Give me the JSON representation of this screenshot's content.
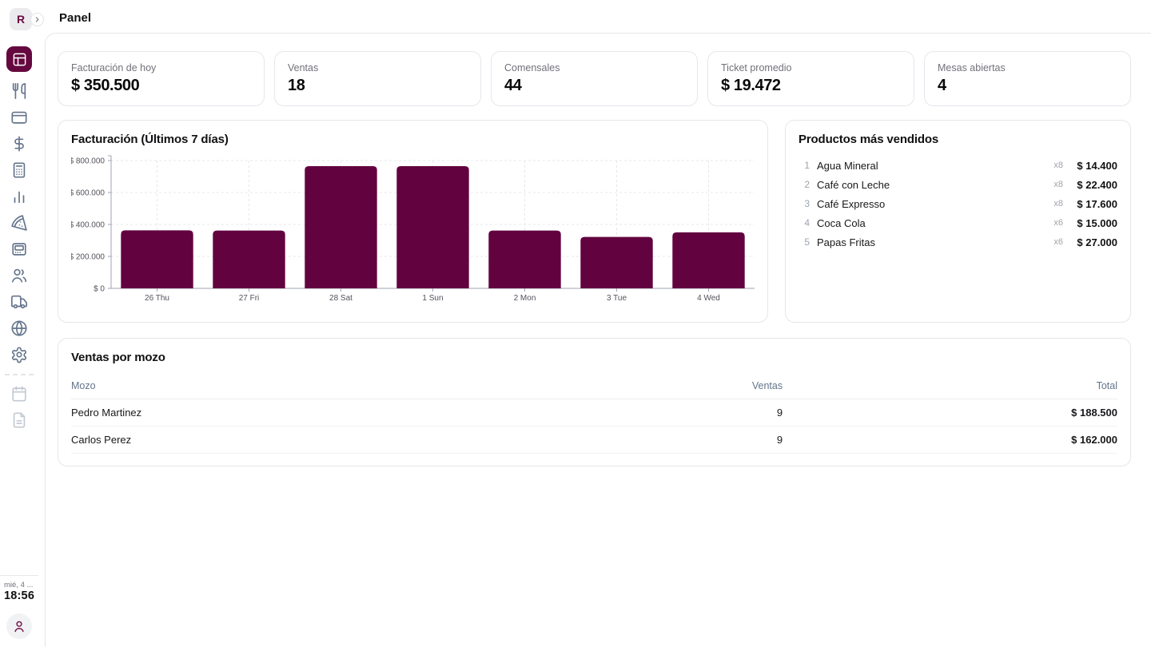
{
  "app": {
    "logo_letter": "R",
    "page_title": "Panel",
    "date_short": "mié, 4 ...",
    "time": "18:56"
  },
  "colors": {
    "accent": "#620340",
    "sidebar_icon": "#64748b",
    "border": "#e5e7eb",
    "grid": "#e5e7eb",
    "axis_text": "#52525b"
  },
  "sidebar": {
    "items": [
      {
        "id": "dashboard",
        "active": true
      },
      {
        "id": "utensils"
      },
      {
        "id": "wallet"
      },
      {
        "id": "dollar"
      },
      {
        "id": "calculator"
      },
      {
        "id": "bar-chart"
      },
      {
        "id": "pizza"
      },
      {
        "id": "terminal"
      },
      {
        "id": "users"
      },
      {
        "id": "truck"
      },
      {
        "id": "globe"
      },
      {
        "id": "settings"
      }
    ],
    "secondary_items": [
      {
        "id": "calendar",
        "disabled": true
      },
      {
        "id": "file",
        "disabled": true
      }
    ]
  },
  "stats": [
    {
      "label": "Facturación de hoy",
      "value": "$ 350.500"
    },
    {
      "label": "Ventas",
      "value": "18"
    },
    {
      "label": "Comensales",
      "value": "44"
    },
    {
      "label": "Ticket promedio",
      "value": "$ 19.472"
    },
    {
      "label": "Mesas abiertas",
      "value": "4"
    }
  ],
  "chart_data": {
    "type": "bar",
    "title": "Facturación (Últimos 7 días)",
    "categories": [
      "26 Thu",
      "27 Fri",
      "28 Sat",
      "1 Sun",
      "2 Mon",
      "3 Tue",
      "4 Wed"
    ],
    "values": [
      363000,
      362000,
      765000,
      765000,
      362000,
      322000,
      350500
    ],
    "ylim": [
      0,
      800000
    ],
    "y_ticks": [
      {
        "value": 0,
        "label": "$ 0"
      },
      {
        "value": 200000,
        "label": "$ 200.000"
      },
      {
        "value": 400000,
        "label": "$ 400.000"
      },
      {
        "value": 600000,
        "label": "$ 600.000"
      },
      {
        "value": 800000,
        "label": "$ 800.000"
      }
    ],
    "xlabel": "",
    "ylabel": "",
    "bar_color": "#620340",
    "grid": "dashed",
    "legend": false
  },
  "top_products": {
    "title": "Productos más vendidos",
    "items": [
      {
        "rank": "1",
        "name": "Agua Mineral",
        "qty": "x8",
        "amount": "$ 14.400"
      },
      {
        "rank": "2",
        "name": "Café con Leche",
        "qty": "x8",
        "amount": "$ 22.400"
      },
      {
        "rank": "3",
        "name": "Café Expresso",
        "qty": "x8",
        "amount": "$ 17.600"
      },
      {
        "rank": "4",
        "name": "Coca Cola",
        "qty": "x6",
        "amount": "$ 15.000"
      },
      {
        "rank": "5",
        "name": "Papas Fritas",
        "qty": "x6",
        "amount": "$ 27.000"
      }
    ]
  },
  "waiters": {
    "title": "Ventas por mozo",
    "columns": [
      "Mozo",
      "Ventas",
      "Total"
    ],
    "rows": [
      {
        "name": "Pedro Martinez",
        "sales": "9",
        "total": "$ 188.500"
      },
      {
        "name": "Carlos Perez",
        "sales": "9",
        "total": "$ 162.000"
      }
    ]
  }
}
